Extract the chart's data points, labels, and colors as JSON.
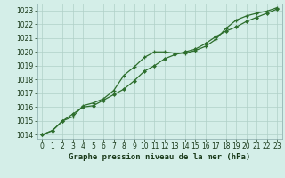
{
  "title": "Graphe pression niveau de la mer (hPa)",
  "bg_color": "#d4eee8",
  "line_color": "#2d6e2d",
  "grid_color": "#b0d0c8",
  "xlim": [
    -0.5,
    23.5
  ],
  "ylim": [
    1013.7,
    1023.5
  ],
  "xticks": [
    0,
    1,
    2,
    3,
    4,
    5,
    6,
    7,
    8,
    9,
    10,
    11,
    12,
    13,
    14,
    15,
    16,
    17,
    18,
    19,
    20,
    21,
    22,
    23
  ],
  "yticks": [
    1014,
    1015,
    1016,
    1017,
    1018,
    1019,
    1020,
    1021,
    1022,
    1023
  ],
  "line1_x": [
    0,
    1,
    2,
    3,
    4,
    5,
    6,
    7,
    8,
    9,
    10,
    11,
    12,
    13,
    14,
    15,
    16,
    17,
    18,
    19,
    20,
    21,
    22,
    23
  ],
  "line1_y": [
    1014.0,
    1014.3,
    1015.0,
    1015.3,
    1016.1,
    1016.3,
    1016.6,
    1017.2,
    1018.3,
    1018.9,
    1019.6,
    1020.0,
    1020.0,
    1019.9,
    1019.9,
    1020.1,
    1020.4,
    1020.9,
    1021.7,
    1022.3,
    1022.6,
    1022.8,
    1022.95,
    1023.2
  ],
  "line2_x": [
    0,
    1,
    2,
    3,
    4,
    5,
    6,
    7,
    8,
    9,
    10,
    11,
    12,
    13,
    14,
    15,
    16,
    17,
    18,
    19,
    20,
    21,
    22,
    23
  ],
  "line2_y": [
    1014.0,
    1014.3,
    1015.0,
    1015.5,
    1016.0,
    1016.1,
    1016.5,
    1016.9,
    1017.3,
    1017.9,
    1018.6,
    1019.0,
    1019.5,
    1019.8,
    1020.0,
    1020.2,
    1020.6,
    1021.1,
    1021.5,
    1021.8,
    1022.2,
    1022.5,
    1022.8,
    1023.1
  ],
  "tick_fontsize": 5.5,
  "title_fontsize": 6.5
}
